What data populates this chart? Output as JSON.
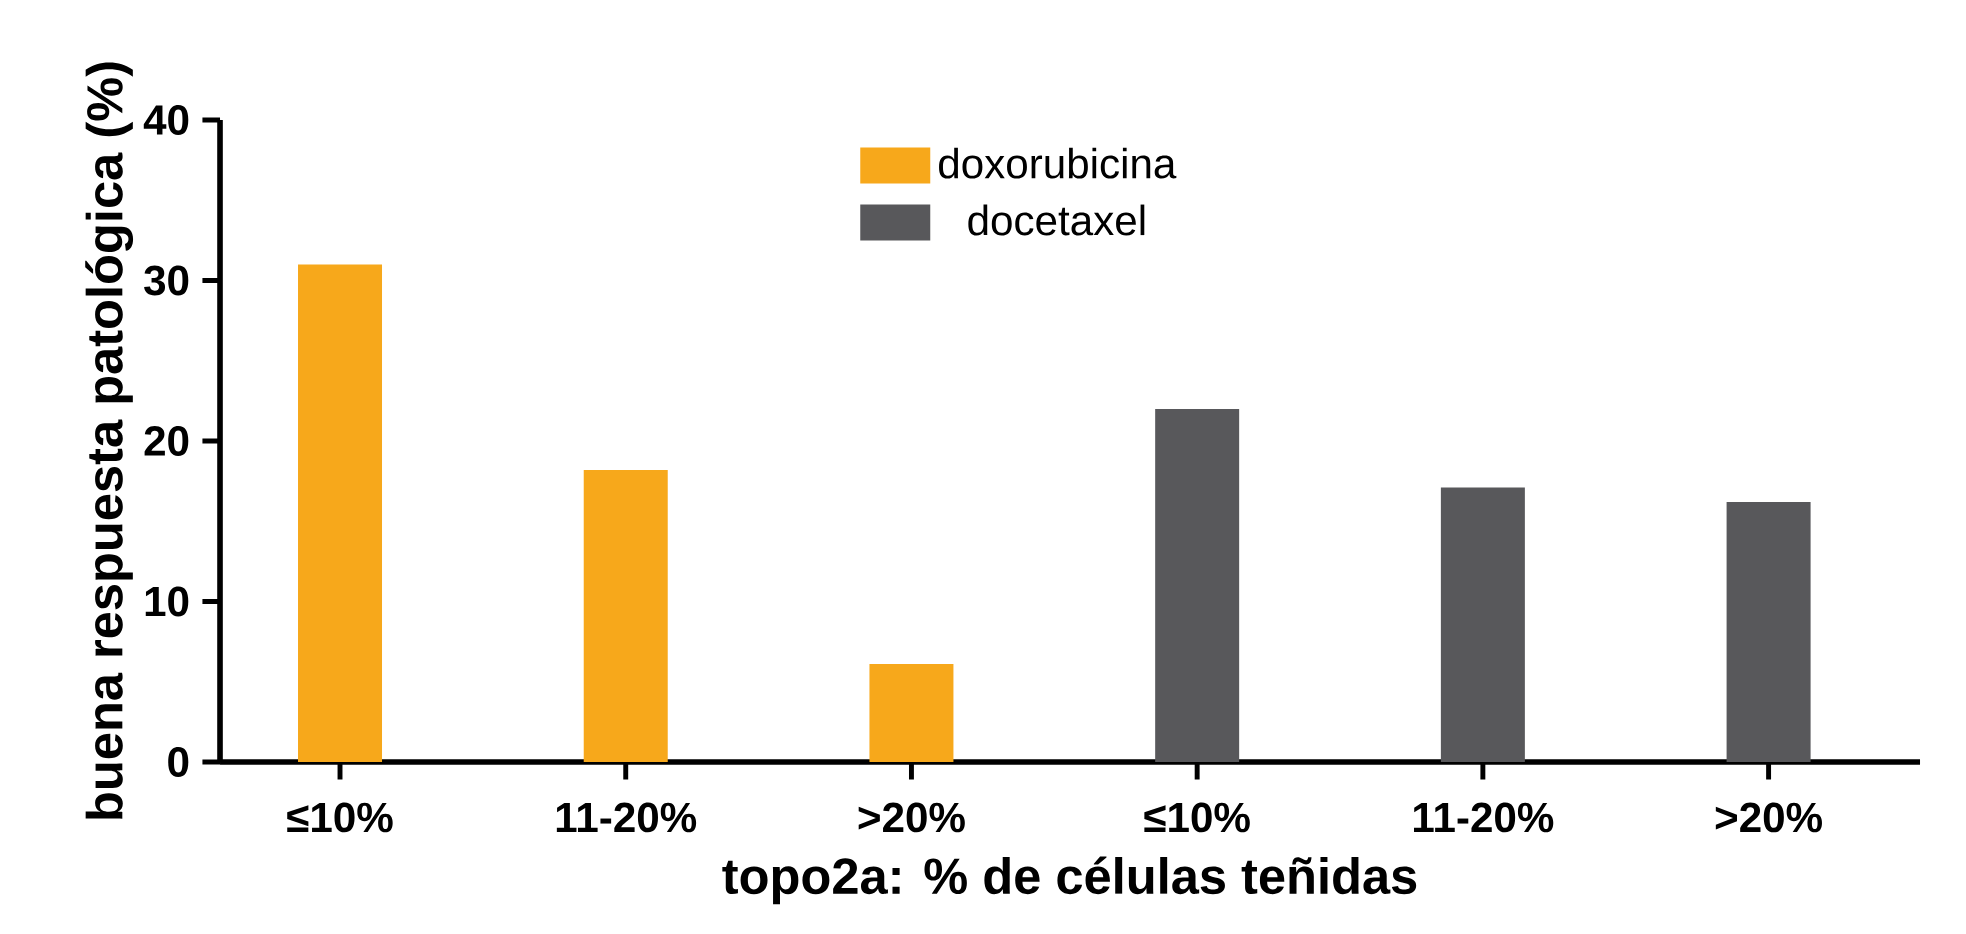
{
  "chart_data": {
    "type": "bar",
    "xlabel": "topo2a: % de células teñidas",
    "ylabel": "buena respuesta patológica (%)",
    "categories": [
      "≤10%",
      "11-20%",
      ">20%",
      "≤10%",
      "11-20%",
      ">20%"
    ],
    "series": [
      {
        "name": "doxorubicina",
        "color": "#f7a81b",
        "values": [
          31,
          18.2,
          6.1,
          null,
          null,
          null
        ]
      },
      {
        "name": "docetaxel",
        "color": "#58585b",
        "values": [
          null,
          null,
          null,
          22,
          17.1,
          16.2
        ]
      }
    ],
    "ylim": [
      0,
      40
    ],
    "yticks": [
      0,
      10,
      20,
      30,
      40
    ],
    "legend": "top"
  }
}
